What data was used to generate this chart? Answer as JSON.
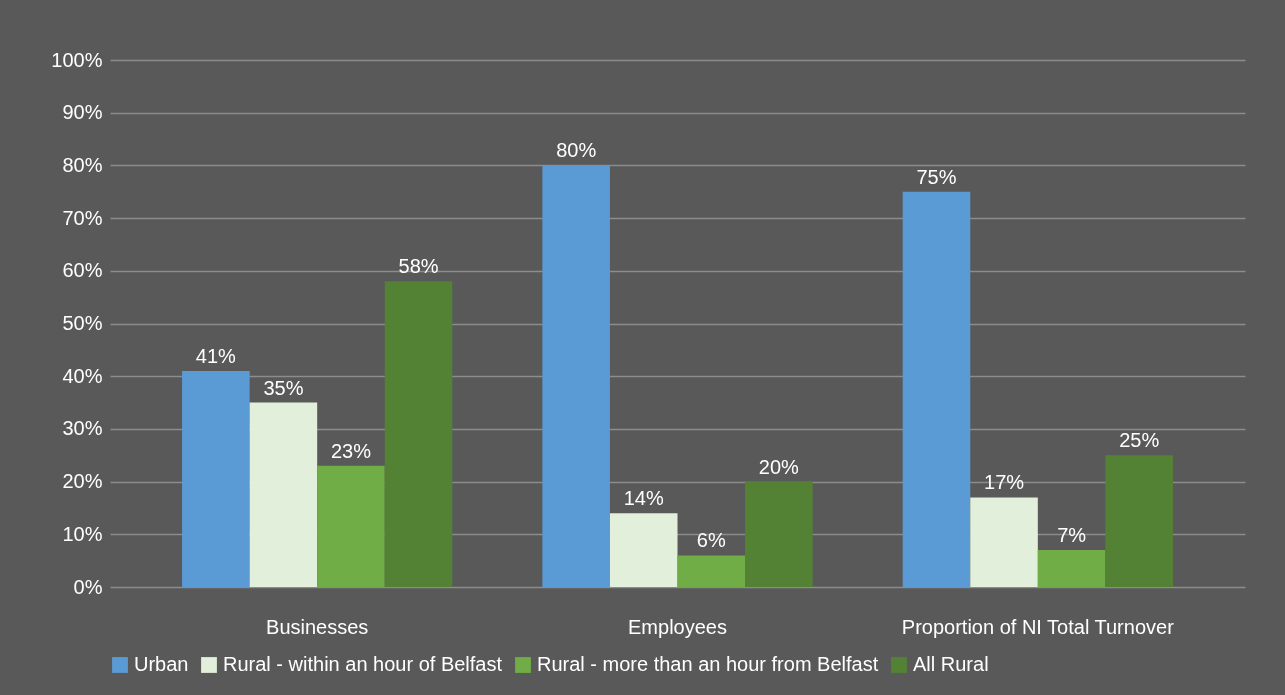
{
  "chart_data": {
    "type": "bar",
    "categories": [
      "Businesses",
      "Employees",
      "Proportion of NI Total Turnover"
    ],
    "series": [
      {
        "name": "Urban",
        "color": "#5b9bd5",
        "values": [
          41,
          80,
          75
        ],
        "value_labels": [
          "41%",
          "80%",
          "75%"
        ]
      },
      {
        "name": "Rural - within an hour of Belfast",
        "color": "#e2efda",
        "values": [
          35,
          14,
          17
        ],
        "value_labels": [
          "35%",
          "14%",
          "17%"
        ]
      },
      {
        "name": "Rural - more than an hour from Belfast",
        "color": "#70ad47",
        "values": [
          23,
          6,
          7
        ],
        "value_labels": [
          "23%",
          "6%",
          "7%"
        ]
      },
      {
        "name": "All Rural",
        "color": "#548235",
        "values": [
          58,
          20,
          25
        ],
        "value_labels": [
          "58%",
          "20%",
          "25%"
        ]
      }
    ],
    "ylim": [
      0,
      100
    ],
    "yticks": [
      {
        "value": 0,
        "label": "0%"
      },
      {
        "value": 10,
        "label": "10%"
      },
      {
        "value": 20,
        "label": "20%"
      },
      {
        "value": 30,
        "label": "30%"
      },
      {
        "value": 40,
        "label": "40%"
      },
      {
        "value": 50,
        "label": "50%"
      },
      {
        "value": 60,
        "label": "60%"
      },
      {
        "value": 70,
        "label": "70%"
      },
      {
        "value": 80,
        "label": "80%"
      },
      {
        "value": 90,
        "label": "90%"
      },
      {
        "value": 100,
        "label": "100%"
      }
    ],
    "grid": "y",
    "legend": "bottom"
  }
}
